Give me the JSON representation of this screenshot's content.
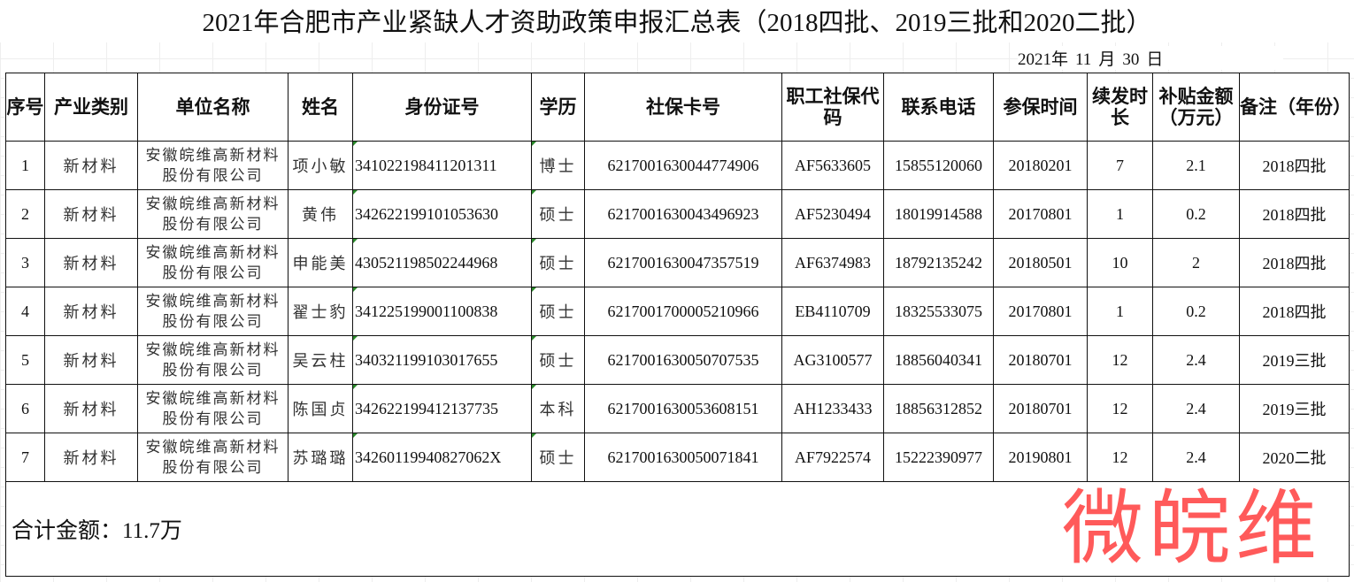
{
  "title": "2021年合肥市产业紧缺人才资助政策申报汇总表（2018四批、2019三批和2020二批）",
  "date": {
    "year": "2021年",
    "month_num": "11",
    "month": "月",
    "day_num": "30",
    "day": "日"
  },
  "headers": [
    "序号",
    "产业类别",
    "单位名称",
    "姓名",
    "身份证号",
    "学历",
    "社保卡号",
    "职工社保代码",
    "联系电话",
    "参保时间",
    "续发时长",
    "补贴金额（万元）",
    "备注（年份）"
  ],
  "rows": [
    {
      "no": "1",
      "category": "新材料",
      "company": "安徽皖维高新材料股份有限公司",
      "name": "项小敏",
      "id": "341022198411201311",
      "edu": "博士",
      "card": "6217001630044774906",
      "code": "AF5633605",
      "phone": "15855120060",
      "start": "20180201",
      "months": "7",
      "amount": "2.1",
      "note": "2018四批"
    },
    {
      "no": "2",
      "category": "新材料",
      "company": "安徽皖维高新材料股份有限公司",
      "name": "黄伟",
      "id": "342622199101053630",
      "edu": "硕士",
      "card": "6217001630043496923",
      "code": "AF5230494",
      "phone": "18019914588",
      "start": "20170801",
      "months": "1",
      "amount": "0.2",
      "note": "2018四批"
    },
    {
      "no": "3",
      "category": "新材料",
      "company": "安徽皖维高新材料股份有限公司",
      "name": "申能美",
      "id": "430521198502244968",
      "edu": "硕士",
      "card": "6217001630047357519",
      "code": "AF6374983",
      "phone": "18792135242",
      "start": "20180501",
      "months": "10",
      "amount": "2",
      "note": "2018四批"
    },
    {
      "no": "4",
      "category": "新材料",
      "company": "安徽皖维高新材料股份有限公司",
      "name": "翟士豹",
      "id": "341225199001100838",
      "edu": "硕士",
      "card": "6217001700005210966",
      "code": "EB4110709",
      "phone": "18325533075",
      "start": "20170801",
      "months": "1",
      "amount": "0.2",
      "note": "2018四批"
    },
    {
      "no": "5",
      "category": "新材料",
      "company": "安徽皖维高新材料股份有限公司",
      "name": "吴云柱",
      "id": "340321199103017655",
      "edu": "硕士",
      "card": "6217001630050707535",
      "code": "AG3100577",
      "phone": "18856040341",
      "start": "20180701",
      "months": "12",
      "amount": "2.4",
      "note": "2019三批"
    },
    {
      "no": "6",
      "category": "新材料",
      "company": "安徽皖维高新材料股份有限公司",
      "name": "陈国贞",
      "id": "342622199412137735",
      "edu": "本科",
      "card": "6217001630053608151",
      "code": "AH1233433",
      "phone": "18856312852",
      "start": "20180701",
      "months": "12",
      "amount": "2.4",
      "note": "2019三批"
    },
    {
      "no": "7",
      "category": "新材料",
      "company": "安徽皖维高新材料股份有限公司",
      "name": "苏璐璐",
      "id": "34260119940827062X",
      "edu": "硕士",
      "card": "6217001630050071841",
      "code": "AF7922574",
      "phone": "15222390977",
      "start": "20190801",
      "months": "12",
      "amount": "2.4",
      "note": "2020二批"
    }
  ],
  "total": "合计金额：11.7万",
  "watermark": "微皖维"
}
